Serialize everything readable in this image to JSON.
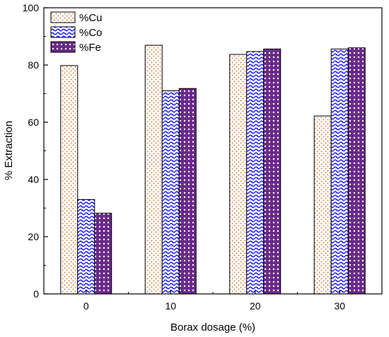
{
  "chart_data": {
    "type": "bar",
    "xlabel": "Borax dosage (%)",
    "ylabel": "% Extraction",
    "categories": [
      "0",
      "10",
      "20",
      "30"
    ],
    "ylim": [
      0,
      100
    ],
    "yticks": [
      0,
      20,
      40,
      60,
      80,
      100
    ],
    "legend_position": "top-left",
    "grid": false,
    "series": [
      {
        "name": "%Cu",
        "values": [
          79.8,
          86.9,
          83.7,
          62.2
        ],
        "pattern": "dots",
        "color": "#d2691e"
      },
      {
        "name": "%Co",
        "values": [
          33.0,
          71.0,
          84.7,
          85.6
        ],
        "pattern": "waves",
        "color": "#1a1aff"
      },
      {
        "name": "%Fe",
        "values": [
          28.2,
          71.8,
          85.6,
          86.0
        ],
        "pattern": "diamond-grid",
        "color": "#6a2a8a"
      }
    ]
  }
}
